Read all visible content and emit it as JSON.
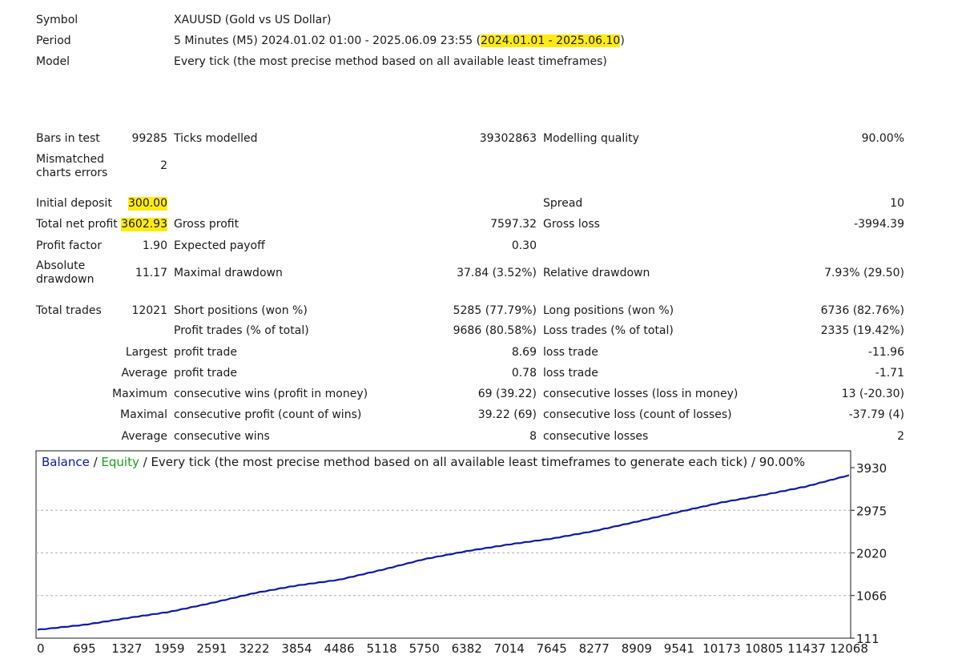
{
  "header": {
    "symbol_label": "Symbol",
    "symbol_value": "XAUUSD (Gold vs US Dollar)",
    "period_label": "Period",
    "period_value": "5 Minutes (M5) 2024.01.02 01:00 - 2025.06.09 23:55 (",
    "period_highlight": "2024.01.01 - 2025.06.10",
    "period_close": ")",
    "model_label": "Model",
    "model_value": "Every tick (the most precise method based on all available least timeframes)"
  },
  "stats": {
    "bars_label": "Bars in test",
    "bars_value": "99285",
    "ticks_label": "Ticks modelled",
    "ticks_value": "39302863",
    "quality_label": "Modelling quality",
    "quality_value": "90.00%",
    "mismatch_label": "Mismatched charts errors",
    "mismatch_value": "2",
    "deposit_label": "Initial deposit",
    "deposit_value": "300.00",
    "spread_label": "Spread",
    "spread_value": "10",
    "netprofit_label": "Total net profit",
    "netprofit_value": "3602.93",
    "grossprofit_label": "Gross profit",
    "grossprofit_value": "7597.32",
    "grossloss_label": "Gross loss",
    "grossloss_value": "-3994.39",
    "pf_label": "Profit factor",
    "pf_value": "1.90",
    "payoff_label": "Expected payoff",
    "payoff_value": "0.30",
    "absdd_label": "Absolute drawdown",
    "absdd_value": "11.17",
    "maxdd_label": "Maximal drawdown",
    "maxdd_value": "37.84 (3.52%)",
    "reldd_label": "Relative drawdown",
    "reldd_value": "7.93% (29.50)",
    "trades_label": "Total trades",
    "trades_value": "12021",
    "short_label": "Short positions (won %)",
    "short_value": "5285 (77.79%)",
    "long_label": "Long positions (won %)",
    "long_value": "6736 (82.76%)",
    "profit_trades_label": "Profit trades (% of total)",
    "profit_trades_value": "9686 (80.58%)",
    "loss_trades_label": "Loss trades (% of total)",
    "loss_trades_value": "2335 (19.42%)",
    "largest_label": "Largest",
    "largest_profit_label": "profit trade",
    "largest_profit_value": "8.69",
    "largest_loss_label": "loss trade",
    "largest_loss_value": "-11.96",
    "average_label": "Average",
    "average_profit_label": "profit trade",
    "average_profit_value": "0.78",
    "average_loss_label": "loss trade",
    "average_loss_value": "-1.71",
    "maximum_label": "Maximum",
    "max_wins_label": "consecutive wins (profit in money)",
    "max_wins_value": "69 (39.22)",
    "max_losses_label": "consecutive losses (loss in money)",
    "max_losses_value": "13 (-20.30)",
    "maximal_label": "Maximal",
    "maximal_profit_label": "consecutive profit (count of wins)",
    "maximal_profit_value": "39.22 (69)",
    "maximal_loss_label": "consecutive loss (count of losses)",
    "maximal_loss_value": "-37.79 (4)",
    "avg_consec_label": "Average",
    "avg_wins_label": "consecutive wins",
    "avg_wins_value": "8",
    "avg_losses_label": "consecutive losses",
    "avg_losses_value": "2"
  },
  "chart_legend": {
    "balance": "Balance",
    "sep1": " / ",
    "equity": "Equity",
    "rest": " / Every tick (the most precise method based on all available least timeframes to generate each tick) / 90.00%"
  },
  "colors": {
    "balance": "#0d1aa0",
    "equity": "#1aa31a",
    "highlight": "#ffeb14",
    "grid": "#b0b0b0"
  },
  "chart_data": {
    "type": "line",
    "series": [
      {
        "name": "Balance",
        "x": [
          0,
          695,
          1327,
          1959,
          2591,
          3222,
          3854,
          4486,
          5118,
          5750,
          6382,
          7014,
          7645,
          8277,
          8909,
          9541,
          10173,
          10805,
          11437,
          12068
        ],
        "values": [
          300,
          410,
          560,
          700,
          900,
          1120,
          1290,
          1420,
          1640,
          1880,
          2060,
          2210,
          2340,
          2510,
          2720,
          2940,
          3150,
          3320,
          3510,
          3760
        ]
      }
    ],
    "x_ticks": [
      "0",
      "695",
      "1327",
      "1959",
      "2591",
      "3222",
      "3854",
      "4486",
      "5118",
      "5750",
      "6382",
      "7014",
      "7645",
      "8277",
      "8909",
      "9541",
      "10173",
      "10805",
      "11437",
      "12068"
    ],
    "y_ticks": [
      "3930",
      "2975",
      "2020",
      "1066",
      "111"
    ],
    "ylim": [
      111,
      3930
    ],
    "xlim": [
      0,
      12068
    ],
    "grid": true
  }
}
